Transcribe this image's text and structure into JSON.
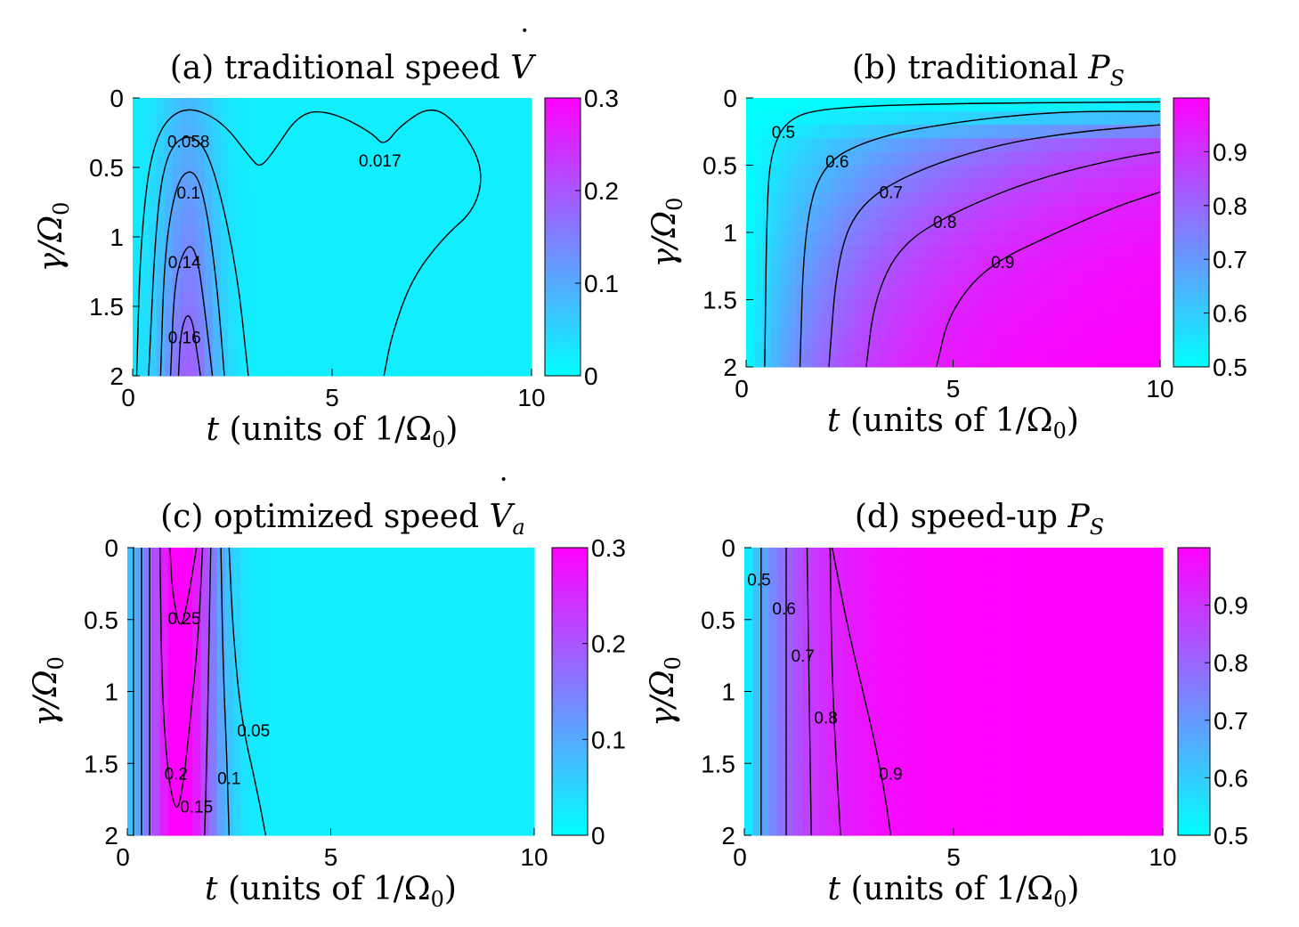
{
  "figure": {
    "xlabel_italic": "t",
    "xlabel_rest": " (units of 1/Ω",
    "xlabel_sub": "0",
    "xlabel_close": ")",
    "ylabel_main": "γ/Ω",
    "ylabel_sub": "0"
  },
  "colors": {
    "low": "#00ffff",
    "high": "#ff00ff",
    "line": "#000000"
  },
  "chart_data": [
    {
      "id": "a",
      "type": "heatmap",
      "title_text": "(a) traditional speed ",
      "title_symbol": "V",
      "title_symbol_dot": "˙",
      "title_symbol_sub": "",
      "xlim": [
        0,
        10
      ],
      "ylim": [
        2,
        0
      ],
      "xticks": [
        "0",
        "5",
        "10"
      ],
      "yticks": [
        "0",
        "0.5",
        "1",
        "1.5",
        "2"
      ],
      "yticks_values": [
        0,
        0.5,
        1,
        1.5,
        2
      ],
      "xticks_values": [
        0,
        5,
        10
      ],
      "colorbar": {
        "min": 0,
        "max": 0.3,
        "ticks": [
          "0",
          "0.1",
          "0.2",
          "0.3"
        ],
        "tick_values": [
          0,
          0.1,
          0.2,
          0.3
        ]
      },
      "contours": [
        {
          "level": 0.017,
          "points": [
            [
              0.1,
              2
            ],
            [
              0.2,
              1.0
            ],
            [
              0.5,
              0.3
            ],
            [
              1.2,
              0.05
            ],
            [
              2.2,
              0.15
            ],
            [
              3.0,
              0.45
            ],
            [
              3.2,
              0.5
            ],
            [
              3.5,
              0.4
            ],
            [
              4.2,
              0.1
            ],
            [
              5.0,
              0.1
            ],
            [
              6.0,
              0.25
            ],
            [
              6.3,
              0.35
            ],
            [
              6.7,
              0.2
            ],
            [
              7.5,
              0.05
            ],
            [
              8.2,
              0.2
            ],
            [
              8.8,
              0.5
            ],
            [
              8.6,
              0.8
            ],
            [
              7.8,
              1.0
            ],
            [
              7.0,
              1.3
            ],
            [
              6.5,
              1.7
            ],
            [
              6.3,
              2
            ]
          ]
        },
        {
          "level": 0.058,
          "points": [
            [
              0.4,
              2
            ],
            [
              0.6,
              0.8
            ],
            [
              0.9,
              0.35
            ],
            [
              1.5,
              0.25
            ],
            [
              2.0,
              0.45
            ],
            [
              2.6,
              1.2
            ],
            [
              2.9,
              2
            ]
          ]
        },
        {
          "level": 0.1,
          "points": [
            [
              0.7,
              2
            ],
            [
              0.8,
              1.1
            ],
            [
              1.1,
              0.6
            ],
            [
              1.5,
              0.5
            ],
            [
              1.8,
              0.7
            ],
            [
              2.1,
              1.3
            ],
            [
              2.3,
              2
            ]
          ]
        },
        {
          "level": 0.14,
          "points": [
            [
              0.95,
              2
            ],
            [
              1.05,
              1.3
            ],
            [
              1.35,
              1.05
            ],
            [
              1.6,
              1.1
            ],
            [
              1.8,
              1.5
            ],
            [
              2.0,
              2
            ]
          ]
        },
        {
          "level": 0.16,
          "points": [
            [
              1.15,
              2
            ],
            [
              1.2,
              1.7
            ],
            [
              1.35,
              1.55
            ],
            [
              1.5,
              1.6
            ],
            [
              1.6,
              1.8
            ],
            [
              1.7,
              2
            ]
          ]
        }
      ],
      "contour_labels": [
        {
          "text": "0.058",
          "x": 1.4,
          "y": 0.31
        },
        {
          "text": "0.017",
          "x": 6.2,
          "y": 0.45
        },
        {
          "text": "0.1",
          "x": 1.4,
          "y": 0.68
        },
        {
          "text": "0.14",
          "x": 1.3,
          "y": 1.18
        },
        {
          "text": "0.16",
          "x": 1.3,
          "y": 1.72
        }
      ],
      "field": {
        "kind": "speed_a"
      }
    },
    {
      "id": "b",
      "type": "heatmap",
      "title_text": "(b) traditional ",
      "title_symbol": "P",
      "title_symbol_dot": "",
      "title_symbol_sub": "S",
      "xlim": [
        0,
        10
      ],
      "ylim": [
        2,
        0
      ],
      "xticks": [
        "0",
        "5",
        "10"
      ],
      "yticks": [
        "0",
        "0.5",
        "1",
        "1.5",
        "2"
      ],
      "yticks_values": [
        0,
        0.5,
        1,
        1.5,
        2
      ],
      "xticks_values": [
        0,
        5,
        10
      ],
      "colorbar": {
        "min": 0.5,
        "max": 1.0,
        "ticks": [
          "0.5",
          "0.6",
          "0.7",
          "0.8",
          "0.9"
        ],
        "tick_values": [
          0.5,
          0.6,
          0.7,
          0.8,
          0.9
        ]
      },
      "contours": [
        {
          "level": 0.5,
          "points": [
            [
              0.45,
              2
            ],
            [
              0.5,
              0.8
            ],
            [
              0.6,
              0.4
            ],
            [
              1.0,
              0.15
            ],
            [
              2.0,
              0.07
            ],
            [
              5.0,
              0.04
            ],
            [
              10,
              0.03
            ]
          ]
        },
        {
          "level": 0.6,
          "points": [
            [
              1.3,
              2
            ],
            [
              1.4,
              1.0
            ],
            [
              1.8,
              0.5
            ],
            [
              3.0,
              0.3
            ],
            [
              5.0,
              0.18
            ],
            [
              7.5,
              0.1
            ],
            [
              10,
              0.1
            ]
          ]
        },
        {
          "level": 0.7,
          "points": [
            [
              2.0,
              2
            ],
            [
              2.2,
              1.2
            ],
            [
              2.7,
              0.8
            ],
            [
              4.0,
              0.55
            ],
            [
              6.0,
              0.35
            ],
            [
              8.0,
              0.25
            ],
            [
              10,
              0.2
            ]
          ]
        },
        {
          "level": 0.8,
          "points": [
            [
              2.9,
              2
            ],
            [
              3.1,
              1.5
            ],
            [
              3.7,
              1.1
            ],
            [
              5.0,
              0.85
            ],
            [
              7.0,
              0.6
            ],
            [
              9.0,
              0.45
            ],
            [
              10,
              0.4
            ]
          ]
        },
        {
          "level": 0.9,
          "points": [
            [
              4.6,
              2
            ],
            [
              4.9,
              1.6
            ],
            [
              5.8,
              1.25
            ],
            [
              7.5,
              1.0
            ],
            [
              9.0,
              0.8
            ],
            [
              10,
              0.7
            ]
          ]
        }
      ],
      "contour_labels": [
        {
          "text": "0.5",
          "x": 0.9,
          "y": 0.25
        },
        {
          "text": "0.6",
          "x": 2.2,
          "y": 0.47
        },
        {
          "text": "0.7",
          "x": 3.5,
          "y": 0.7
        },
        {
          "text": "0.8",
          "x": 4.8,
          "y": 0.92
        },
        {
          "text": "0.9",
          "x": 6.2,
          "y": 1.22
        }
      ],
      "field": {
        "kind": "ps_trad"
      }
    },
    {
      "id": "c",
      "type": "heatmap",
      "title_text": "(c) optimized speed ",
      "title_symbol": "V",
      "title_symbol_dot": "˙",
      "title_symbol_sub": "a",
      "xlim": [
        0,
        10
      ],
      "ylim": [
        2,
        0
      ],
      "xticks": [
        "0",
        "5",
        "10"
      ],
      "yticks": [
        "0",
        "0.5",
        "1",
        "1.5",
        "2"
      ],
      "yticks_values": [
        0,
        0.5,
        1,
        1.5,
        2
      ],
      "xticks_values": [
        0,
        5,
        10
      ],
      "colorbar": {
        "min": 0,
        "max": 0.3,
        "ticks": [
          "0",
          "0.1",
          "0.2",
          "0.3"
        ],
        "tick_values": [
          0,
          0.1,
          0.2,
          0.3
        ]
      },
      "contours": [
        {
          "level": 0.05,
          "points": [
            [
              0.15,
              0
            ],
            [
              0.15,
              2
            ]
          ]
        },
        {
          "level": 0.05,
          "points": [
            [
              2.5,
              0
            ],
            [
              2.6,
              0.6
            ],
            [
              2.8,
              1.2
            ],
            [
              3.2,
              1.7
            ],
            [
              3.4,
              2
            ]
          ]
        },
        {
          "level": 0.1,
          "points": [
            [
              0.35,
              0
            ],
            [
              0.35,
              2
            ]
          ]
        },
        {
          "level": 0.1,
          "points": [
            [
              2.3,
              0
            ],
            [
              2.35,
              0.8
            ],
            [
              2.45,
              1.5
            ],
            [
              2.5,
              2
            ]
          ]
        },
        {
          "level": 0.15,
          "points": [
            [
              0.55,
              0
            ],
            [
              0.55,
              2
            ]
          ]
        },
        {
          "level": 0.15,
          "points": [
            [
              2.05,
              0
            ],
            [
              2.0,
              0.8
            ],
            [
              1.95,
              1.5
            ],
            [
              1.9,
              2
            ]
          ]
        },
        {
          "level": 0.2,
          "points": [
            [
              0.8,
              0
            ],
            [
              0.85,
              1.0
            ],
            [
              1.0,
              1.6
            ],
            [
              1.2,
              1.85
            ],
            [
              1.35,
              1.7
            ],
            [
              1.55,
              1.2
            ],
            [
              1.75,
              0.6
            ],
            [
              1.85,
              0
            ]
          ]
        },
        {
          "level": 0.25,
          "points": [
            [
              1.05,
              0
            ],
            [
              1.1,
              0.3
            ],
            [
              1.3,
              0.6
            ],
            [
              1.5,
              0.35
            ],
            [
              1.7,
              0
            ]
          ]
        }
      ],
      "contour_labels": [
        {
          "text": "0.25",
          "x": 1.4,
          "y": 0.49
        },
        {
          "text": "0.05",
          "x": 3.1,
          "y": 1.27
        },
        {
          "text": "0.2",
          "x": 1.2,
          "y": 1.57
        },
        {
          "text": "0.1",
          "x": 2.5,
          "y": 1.6
        },
        {
          "text": "0.15",
          "x": 1.7,
          "y": 1.8
        }
      ],
      "field": {
        "kind": "speed_c"
      }
    },
    {
      "id": "d",
      "type": "heatmap",
      "title_text": "(d) speed-up ",
      "title_symbol": "P",
      "title_symbol_dot": "",
      "title_symbol_sub": "S",
      "xlim": [
        0,
        10
      ],
      "ylim": [
        2,
        0
      ],
      "xticks": [
        "0",
        "5",
        "10"
      ],
      "yticks": [
        "0",
        "0.5",
        "1",
        "1.5",
        "2"
      ],
      "yticks_values": [
        0,
        0.5,
        1,
        1.5,
        2
      ],
      "xticks_values": [
        0,
        5,
        10
      ],
      "colorbar": {
        "min": 0.5,
        "max": 1.0,
        "ticks": [
          "0.5",
          "0.6",
          "0.7",
          "0.8",
          "0.9"
        ],
        "tick_values": [
          0.5,
          0.6,
          0.7,
          0.8,
          0.9
        ]
      },
      "contours": [
        {
          "level": 0.5,
          "points": [
            [
              0.4,
              0
            ],
            [
              0.4,
              2
            ]
          ]
        },
        {
          "level": 0.6,
          "points": [
            [
              1.0,
              0
            ],
            [
              1.0,
              2
            ]
          ]
        },
        {
          "level": 0.7,
          "points": [
            [
              1.5,
              0
            ],
            [
              1.55,
              1.0
            ],
            [
              1.6,
              2
            ]
          ]
        },
        {
          "level": 0.8,
          "points": [
            [
              2.05,
              0
            ],
            [
              2.1,
              1.0
            ],
            [
              2.3,
              2
            ]
          ]
        },
        {
          "level": 0.9,
          "points": [
            [
              2.1,
              0
            ],
            [
              2.5,
              0.6
            ],
            [
              3.0,
              1.2
            ],
            [
              3.3,
              1.6
            ],
            [
              3.5,
              2
            ]
          ]
        }
      ],
      "contour_labels": [
        {
          "text": "0.5",
          "x": 0.35,
          "y": 0.22
        },
        {
          "text": "0.6",
          "x": 0.95,
          "y": 0.42
        },
        {
          "text": "0.7",
          "x": 1.4,
          "y": 0.75
        },
        {
          "text": "0.8",
          "x": 1.95,
          "y": 1.18
        },
        {
          "text": "0.9",
          "x": 3.5,
          "y": 1.57
        }
      ],
      "field": {
        "kind": "ps_speedup"
      }
    }
  ]
}
